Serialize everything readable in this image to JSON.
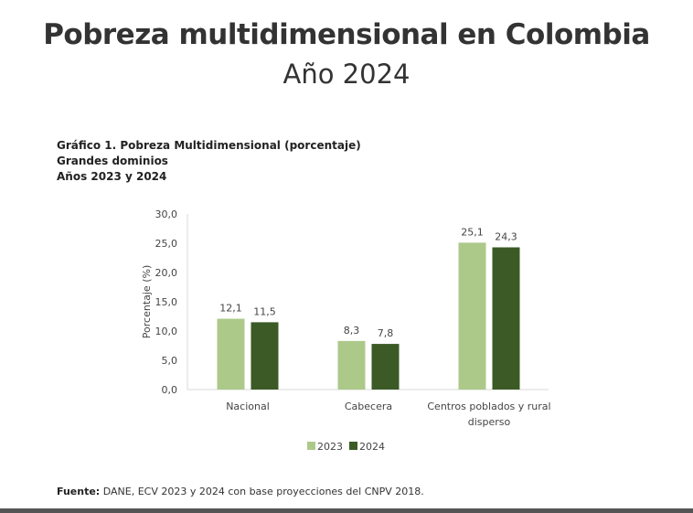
{
  "header": {
    "title": "Pobreza multidimensional en Colombia",
    "subtitle": "Año 2024"
  },
  "caption": {
    "line1": "Gráfico 1. Pobreza Multidimensional (porcentaje)",
    "line2": "Grandes dominios",
    "line3": "Años 2023 y 2024"
  },
  "source": {
    "label": "Fuente:",
    "text": " DANE, ECV 2023 y 2024 con base proyecciones del CNPV 2018."
  },
  "chart_data": {
    "type": "bar",
    "categories": [
      "Nacional",
      "Cabecera",
      "Centros poblados y rural disperso"
    ],
    "series": [
      {
        "name": "2023",
        "values": [
          12.1,
          8.3,
          25.1
        ],
        "color": "#adc98a",
        "labels": [
          "12,1",
          "8,3",
          "25,1"
        ]
      },
      {
        "name": "2024",
        "values": [
          11.5,
          7.8,
          24.3
        ],
        "color": "#3b5a26",
        "labels": [
          "11,5",
          "7,8",
          "24,3"
        ]
      }
    ],
    "ylabel": "Porcentaje (%)",
    "ylim": [
      0,
      30
    ],
    "yticks": [
      "0,0",
      "5,0",
      "10,0",
      "15,0",
      "20,0",
      "25,0",
      "30,0"
    ],
    "grid": false,
    "legend": "bottom"
  }
}
